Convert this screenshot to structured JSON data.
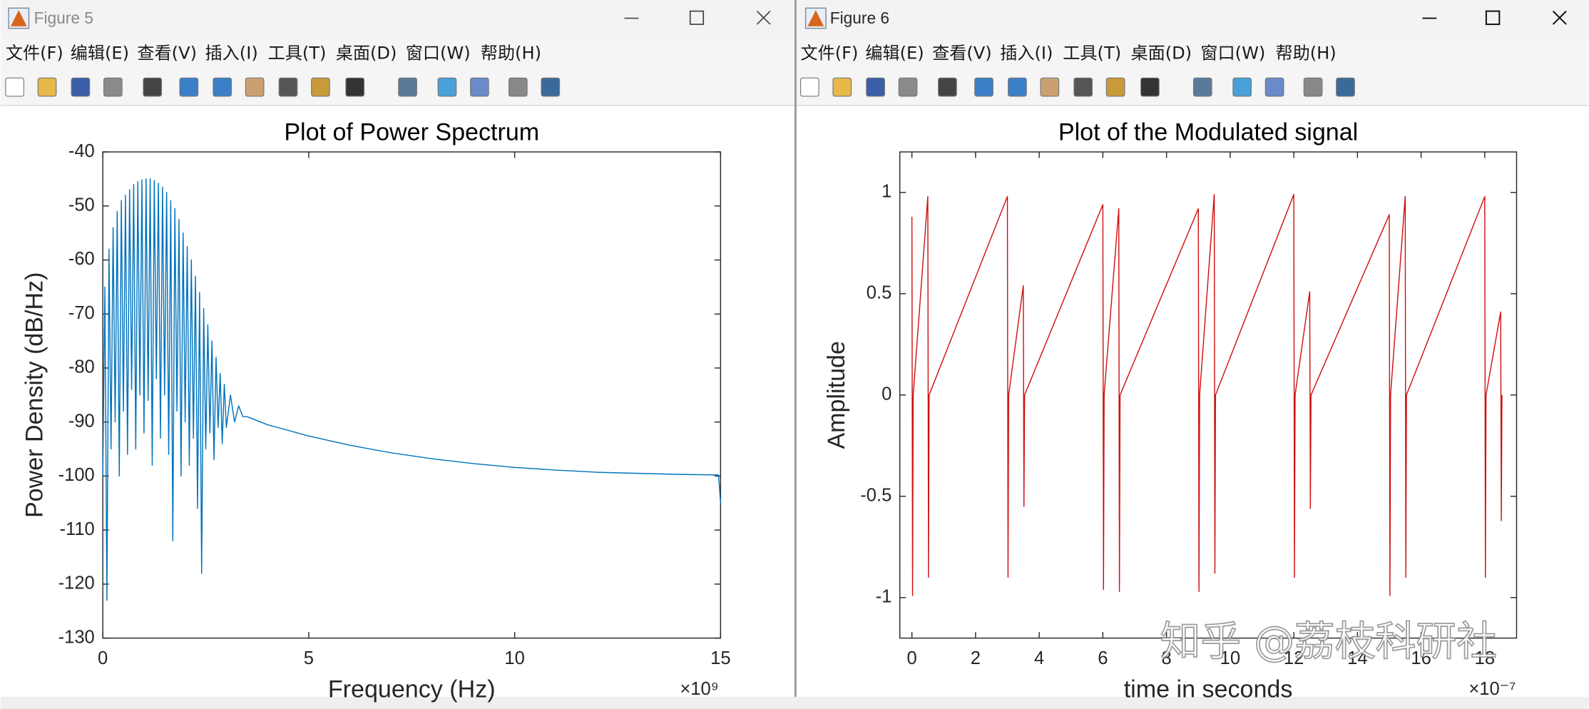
{
  "windows": [
    {
      "title": "Figure 5",
      "menu": [
        "文件(F)",
        "编辑(E)",
        "查看(V)",
        "插入(I)",
        "工具(T)",
        "桌面(D)",
        "窗口(W)",
        "帮助(H)"
      ]
    },
    {
      "title": "Figure 6",
      "menu": [
        "文件(F)",
        "编辑(E)",
        "查看(V)",
        "插入(I)",
        "工具(T)",
        "桌面(D)",
        "窗口(W)",
        "帮助(H)"
      ]
    }
  ],
  "watermark": "知乎 @荔枝科研社",
  "chart_data": [
    {
      "type": "line",
      "title": "Plot of Power Spectrum",
      "x_label": "Frequency (Hz)",
      "y_label": "Power Density (dB/Hz)",
      "x_exponent": "×10⁹",
      "x": [
        0,
        0.05,
        0.1,
        0.15,
        0.2,
        0.25,
        0.3,
        0.35,
        0.4,
        0.45,
        0.5,
        0.55,
        0.6,
        0.65,
        0.7,
        0.75,
        0.8,
        0.85,
        0.9,
        0.95,
        1.0,
        1.05,
        1.1,
        1.15,
        1.2,
        1.25,
        1.3,
        1.35,
        1.4,
        1.45,
        1.5,
        1.55,
        1.6,
        1.65,
        1.7,
        1.75,
        1.8,
        1.85,
        1.9,
        1.95,
        2.0,
        2.05,
        2.1,
        2.15,
        2.2,
        2.25,
        2.3,
        2.35,
        2.4,
        2.45,
        2.5,
        2.55,
        2.6,
        2.65,
        2.7,
        2.75,
        2.8,
        2.85,
        2.9,
        2.95,
        3.0,
        3.1,
        3.2,
        3.3,
        3.4,
        3.5,
        4,
        5,
        6,
        7,
        8,
        9,
        10,
        11,
        12,
        13,
        14,
        14.95,
        15
      ],
      "series": [
        {
          "color": "#0072bd",
          "values": [
            -100,
            -65,
            -123,
            -58,
            -95,
            -54,
            -90,
            -51,
            -100,
            -49,
            -88,
            -48,
            -96,
            -47,
            -84,
            -46,
            -95,
            -45.5,
            -85,
            -45.2,
            -92,
            -45,
            -86,
            -45,
            -98,
            -45.3,
            -82,
            -45.8,
            -93,
            -46.5,
            -85,
            -47.5,
            -96,
            -49,
            -112,
            -50.5,
            -88,
            -52.5,
            -100,
            -55,
            -90,
            -57.5,
            -98,
            -60,
            -93,
            -63,
            -106,
            -66,
            -118,
            -69,
            -95,
            -72,
            -92,
            -75,
            -97,
            -78,
            -91,
            -81,
            -94,
            -83,
            -91,
            -85,
            -90,
            -87,
            -89,
            -89,
            -90.5,
            -92.6,
            -94.3,
            -95.7,
            -96.8,
            -97.7,
            -98.4,
            -98.9,
            -99.3,
            -99.5,
            -99.7,
            -99.8,
            -105
          ]
        }
      ],
      "xlim": [
        0,
        15
      ],
      "ylim": [
        -130,
        -40
      ],
      "xticks": [
        0,
        5,
        10,
        15
      ],
      "yticks": [
        -130,
        -120,
        -110,
        -100,
        -90,
        -80,
        -70,
        -60,
        -50,
        -40
      ],
      "box": true
    },
    {
      "type": "line",
      "title": "Plot of the Modulated signal",
      "x_label": "time in seconds",
      "y_label": "Amplitude",
      "x_exponent": "×10⁻⁷",
      "x": [
        0,
        0.02,
        0.04,
        0.5,
        0.52,
        0.54,
        3.0,
        3.02,
        3.04,
        3.5,
        3.52,
        3.54,
        6.0,
        6.02,
        6.04,
        6.5,
        6.52,
        6.54,
        9.0,
        9.02,
        9.04,
        9.5,
        9.52,
        9.54,
        12.0,
        12.02,
        12.04,
        12.5,
        12.52,
        12.54,
        15.0,
        15.02,
        15.04,
        15.5,
        15.52,
        15.54,
        18.0,
        18.02,
        18.04,
        18.5,
        18.52,
        18.54
      ],
      "series": [
        {
          "color": "#d01010",
          "values": [
            0.88,
            -0.99,
            0,
            0.98,
            -0.9,
            0,
            0.98,
            -0.9,
            0,
            0.54,
            -0.55,
            0,
            0.94,
            -0.96,
            0,
            0.92,
            -0.97,
            0,
            0.92,
            -0.97,
            0,
            0.99,
            -0.88,
            0,
            0.99,
            -0.9,
            0,
            0.51,
            -0.56,
            0,
            0.89,
            -0.99,
            0,
            0.98,
            -0.9,
            0,
            0.98,
            -0.9,
            0,
            0.41,
            -0.62,
            0
          ]
        }
      ],
      "xlim": [
        -0.38,
        19
      ],
      "ylim": [
        -1.2,
        1.2
      ],
      "xticks": [
        0,
        2,
        4,
        6,
        8,
        10,
        12,
        14,
        16,
        18
      ],
      "yticks": [
        -1,
        -0.5,
        0,
        0.5,
        1
      ],
      "box": true
    }
  ]
}
